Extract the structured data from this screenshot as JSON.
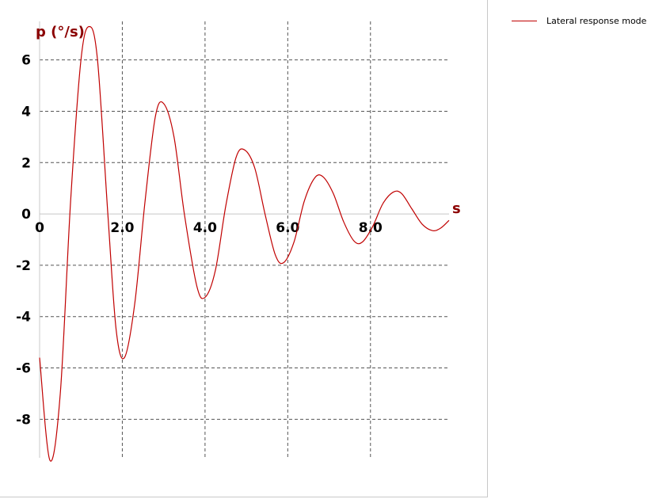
{
  "chart_data": {
    "type": "line",
    "xlabel": "s",
    "ylabel": "p (°/s)",
    "xlim": [
      0,
      9.9
    ],
    "ylim": [
      -9.5,
      7.5
    ],
    "x_ticks": [
      {
        "value": 0,
        "label": "0"
      },
      {
        "value": 2,
        "label": "2.0"
      },
      {
        "value": 4,
        "label": "4.0"
      },
      {
        "value": 6,
        "label": "6.0"
      },
      {
        "value": 8,
        "label": "8.0"
      }
    ],
    "y_ticks": [
      {
        "value": 6,
        "label": "6"
      },
      {
        "value": 4,
        "label": "4"
      },
      {
        "value": 2,
        "label": "2"
      },
      {
        "value": 0,
        "label": "0"
      },
      {
        "value": -2,
        "label": "-2"
      },
      {
        "value": -4,
        "label": "-4"
      },
      {
        "value": -6,
        "label": "-6"
      },
      {
        "value": -8,
        "label": "-8"
      }
    ],
    "grid": true,
    "legend_position": "top-right",
    "series": [
      {
        "name": "Lateral response mode",
        "color": "#c00000",
        "points": [
          [
            0.0,
            -5.6
          ],
          [
            0.25,
            -9.6
          ],
          [
            0.5,
            -7.0
          ],
          [
            0.75,
            0.5
          ],
          [
            1.0,
            6.0
          ],
          [
            1.2,
            7.3
          ],
          [
            1.4,
            6.0
          ],
          [
            1.65,
            0.0
          ],
          [
            1.85,
            -4.5
          ],
          [
            2.05,
            -5.6
          ],
          [
            2.3,
            -3.5
          ],
          [
            2.55,
            0.5
          ],
          [
            2.8,
            3.8
          ],
          [
            3.0,
            4.3
          ],
          [
            3.25,
            3.0
          ],
          [
            3.5,
            0.0
          ],
          [
            3.8,
            -2.8
          ],
          [
            4.0,
            -3.25
          ],
          [
            4.25,
            -2.2
          ],
          [
            4.5,
            0.3
          ],
          [
            4.75,
            2.2
          ],
          [
            4.95,
            2.5
          ],
          [
            5.2,
            1.8
          ],
          [
            5.45,
            0.0
          ],
          [
            5.7,
            -1.6
          ],
          [
            5.9,
            -1.9
          ],
          [
            6.15,
            -1.1
          ],
          [
            6.4,
            0.5
          ],
          [
            6.65,
            1.4
          ],
          [
            6.85,
            1.45
          ],
          [
            7.1,
            0.8
          ],
          [
            7.35,
            -0.3
          ],
          [
            7.6,
            -1.05
          ],
          [
            7.8,
            -1.1
          ],
          [
            8.05,
            -0.5
          ],
          [
            8.3,
            0.4
          ],
          [
            8.55,
            0.85
          ],
          [
            8.75,
            0.8
          ],
          [
            9.0,
            0.2
          ],
          [
            9.25,
            -0.4
          ],
          [
            9.5,
            -0.65
          ],
          [
            9.7,
            -0.55
          ],
          [
            9.9,
            -0.25
          ]
        ]
      }
    ]
  }
}
